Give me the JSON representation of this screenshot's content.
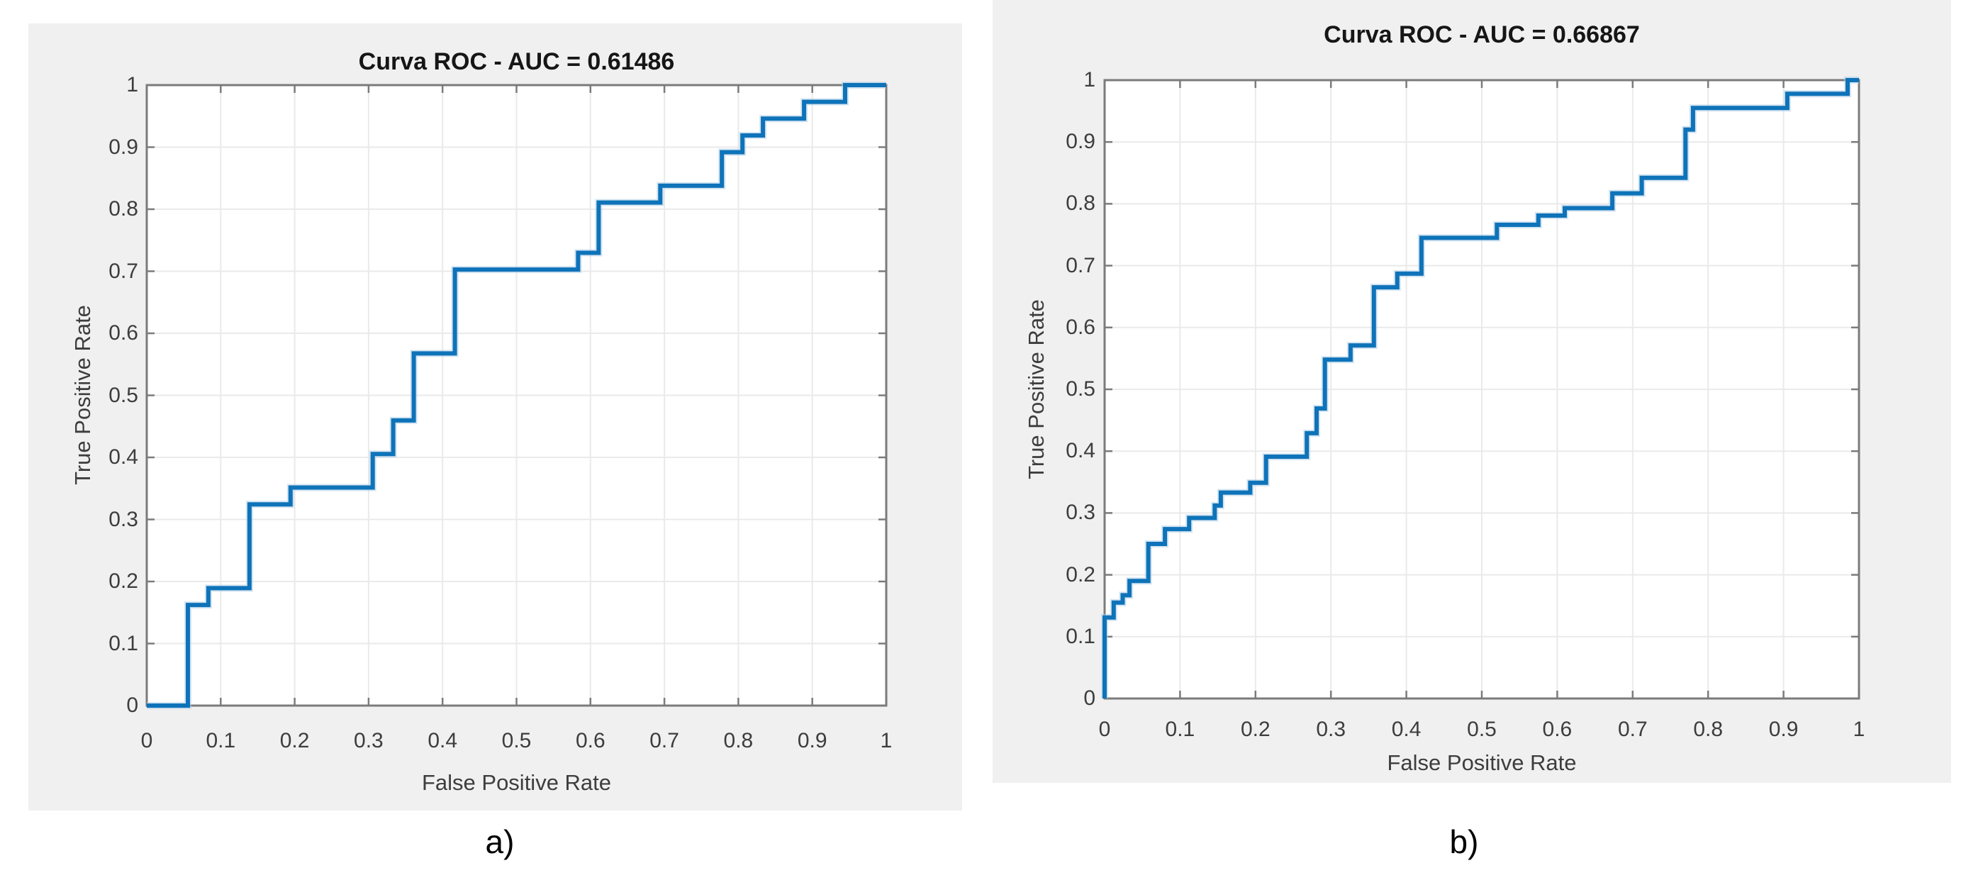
{
  "style": {
    "page_background": "#ffffff",
    "panel_background": "#f0f0f0",
    "plot_background": "#ffffff",
    "grid_color": "#eaeaea",
    "axis_color": "#7b7b7b",
    "tick_text_color": "#3d3d3d",
    "title_color": "#161616",
    "curve_color": "#0e73b9",
    "curve_halo_color": "#aecde7"
  },
  "chart_data": [
    {
      "id": "fig-a",
      "type": "line",
      "line_style": "step-staircase",
      "title": "Curva ROC - AUC = 0.61486",
      "auc": 0.61486,
      "xlabel": "False Positive Rate",
      "ylabel": "True Positive Rate",
      "caption": "a)",
      "xlim": [
        0,
        1
      ],
      "ylim": [
        0,
        1
      ],
      "grid": true,
      "legend": null,
      "x_tick_labels": [
        "0",
        "0.1",
        "0.2",
        "0.3",
        "0.4",
        "0.5",
        "0.6",
        "0.7",
        "0.8",
        "0.9",
        "1"
      ],
      "y_tick_labels": [
        "0",
        "0.1",
        "0.2",
        "0.3",
        "0.4",
        "0.5",
        "0.6",
        "0.7",
        "0.8",
        "0.9",
        "1"
      ],
      "points": [
        [
          0,
          0
        ],
        [
          0.0556,
          0
        ],
        [
          0.0556,
          0.1622
        ],
        [
          0.0833,
          0.1622
        ],
        [
          0.0833,
          0.1892
        ],
        [
          0.1389,
          0.1892
        ],
        [
          0.1389,
          0.3243
        ],
        [
          0.1944,
          0.3243
        ],
        [
          0.1944,
          0.3514
        ],
        [
          0.3056,
          0.3514
        ],
        [
          0.3056,
          0.4054
        ],
        [
          0.3333,
          0.4054
        ],
        [
          0.3333,
          0.4595
        ],
        [
          0.3611,
          0.4595
        ],
        [
          0.3611,
          0.5676
        ],
        [
          0.4167,
          0.5676
        ],
        [
          0.4167,
          0.7027
        ],
        [
          0.5833,
          0.7027
        ],
        [
          0.5833,
          0.7297
        ],
        [
          0.6111,
          0.7297
        ],
        [
          0.6111,
          0.8108
        ],
        [
          0.6944,
          0.8108
        ],
        [
          0.6944,
          0.8378
        ],
        [
          0.7778,
          0.8378
        ],
        [
          0.7778,
          0.8919
        ],
        [
          0.8056,
          0.8919
        ],
        [
          0.8056,
          0.9189
        ],
        [
          0.8333,
          0.9189
        ],
        [
          0.8333,
          0.9459
        ],
        [
          0.8889,
          0.9459
        ],
        [
          0.8889,
          0.973
        ],
        [
          0.9444,
          0.973
        ],
        [
          0.9444,
          1
        ],
        [
          1,
          1
        ]
      ]
    },
    {
      "id": "fig-b",
      "type": "line",
      "line_style": "step-staircase",
      "title": "Curva ROC - AUC = 0.66867",
      "auc": 0.66867,
      "xlabel": "False Positive Rate",
      "ylabel": "True Positive Rate",
      "caption": "b)",
      "xlim": [
        0,
        1
      ],
      "ylim": [
        0,
        1
      ],
      "grid": true,
      "legend": null,
      "x_tick_labels": [
        "0",
        "0.1",
        "0.2",
        "0.3",
        "0.4",
        "0.5",
        "0.6",
        "0.7",
        "0.8",
        "0.9",
        "1"
      ],
      "y_tick_labels": [
        "0",
        "0.1",
        "0.2",
        "0.3",
        "0.4",
        "0.5",
        "0.6",
        "0.7",
        "0.8",
        "0.9",
        "1"
      ],
      "points": [
        [
          0,
          0
        ],
        [
          0,
          0.131
        ],
        [
          0.012,
          0.131
        ],
        [
          0.012,
          0.155
        ],
        [
          0.024,
          0.155
        ],
        [
          0.024,
          0.167
        ],
        [
          0.033,
          0.167
        ],
        [
          0.033,
          0.19
        ],
        [
          0.058,
          0.19
        ],
        [
          0.058,
          0.25
        ],
        [
          0.08,
          0.25
        ],
        [
          0.08,
          0.274
        ],
        [
          0.112,
          0.274
        ],
        [
          0.112,
          0.292
        ],
        [
          0.146,
          0.292
        ],
        [
          0.146,
          0.312
        ],
        [
          0.154,
          0.312
        ],
        [
          0.154,
          0.333
        ],
        [
          0.193,
          0.333
        ],
        [
          0.193,
          0.349
        ],
        [
          0.214,
          0.349
        ],
        [
          0.214,
          0.391
        ],
        [
          0.268,
          0.391
        ],
        [
          0.268,
          0.429
        ],
        [
          0.281,
          0.429
        ],
        [
          0.281,
          0.469
        ],
        [
          0.292,
          0.469
        ],
        [
          0.292,
          0.548
        ],
        [
          0.326,
          0.548
        ],
        [
          0.326,
          0.571
        ],
        [
          0.357,
          0.571
        ],
        [
          0.357,
          0.665
        ],
        [
          0.388,
          0.665
        ],
        [
          0.388,
          0.687
        ],
        [
          0.42,
          0.687
        ],
        [
          0.42,
          0.745
        ],
        [
          0.52,
          0.745
        ],
        [
          0.52,
          0.766
        ],
        [
          0.575,
          0.766
        ],
        [
          0.575,
          0.781
        ],
        [
          0.61,
          0.781
        ],
        [
          0.61,
          0.793
        ],
        [
          0.673,
          0.793
        ],
        [
          0.673,
          0.817
        ],
        [
          0.712,
          0.817
        ],
        [
          0.712,
          0.842
        ],
        [
          0.77,
          0.842
        ],
        [
          0.77,
          0.92
        ],
        [
          0.78,
          0.92
        ],
        [
          0.78,
          0.955
        ],
        [
          0.905,
          0.955
        ],
        [
          0.905,
          0.978
        ],
        [
          0.985,
          0.978
        ],
        [
          0.985,
          1
        ],
        [
          1,
          1
        ]
      ]
    }
  ]
}
